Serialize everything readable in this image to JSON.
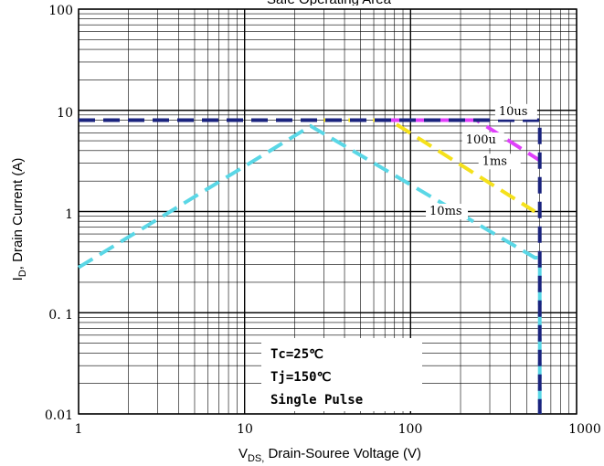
{
  "chart_data": {
    "type": "line",
    "title": "Safe Operating Area",
    "x_scale": "log",
    "y_scale": "log",
    "xlim": [
      1,
      1000
    ],
    "ylim": [
      0.01,
      100
    ],
    "x_ticks": [
      "1",
      "10",
      "100",
      "1000"
    ],
    "y_ticks": [
      "100",
      "10",
      "1",
      "0. 1",
      "0.01"
    ],
    "xlabel": {
      "main": "V",
      "sub": "DS,",
      "rest": " Drain-Souree Voltage (V)"
    },
    "ylabel": {
      "main": "I",
      "sub": "D",
      "rest": ", Drain Current  (A)"
    },
    "grid": true,
    "series": [
      {
        "name": "10us",
        "color": "#1a237e",
        "x": [
          1,
          600,
          600
        ],
        "y": [
          8,
          8,
          0.01
        ]
      },
      {
        "name": "100u",
        "color": "#e040fb",
        "x": [
          75,
          250,
          600
        ],
        "y": [
          8,
          8,
          3.2
        ]
      },
      {
        "name": "1ms",
        "color": "#f5e11b",
        "x": [
          30,
          75,
          560
        ],
        "y": [
          8,
          8,
          1.0
        ]
      },
      {
        "name": "10ms",
        "color": "#5ad7e6",
        "x": [
          1,
          25,
          560,
          600,
          600
        ],
        "y": [
          0.28,
          7.0,
          0.35,
          0.35,
          0.01
        ]
      }
    ],
    "label_positions_in_data": [
      {
        "name": "10us",
        "x": 340,
        "y": 9.0
      },
      {
        "name": "100u",
        "x": 215,
        "y": 4.7
      },
      {
        "name": "1ms",
        "x": 270,
        "y": 2.9
      },
      {
        "name": "10ms",
        "x": 130,
        "y": 0.93
      }
    ],
    "annotations": [
      "Tc=25℃",
      "Tj=150℃",
      "Single Pulse"
    ]
  }
}
